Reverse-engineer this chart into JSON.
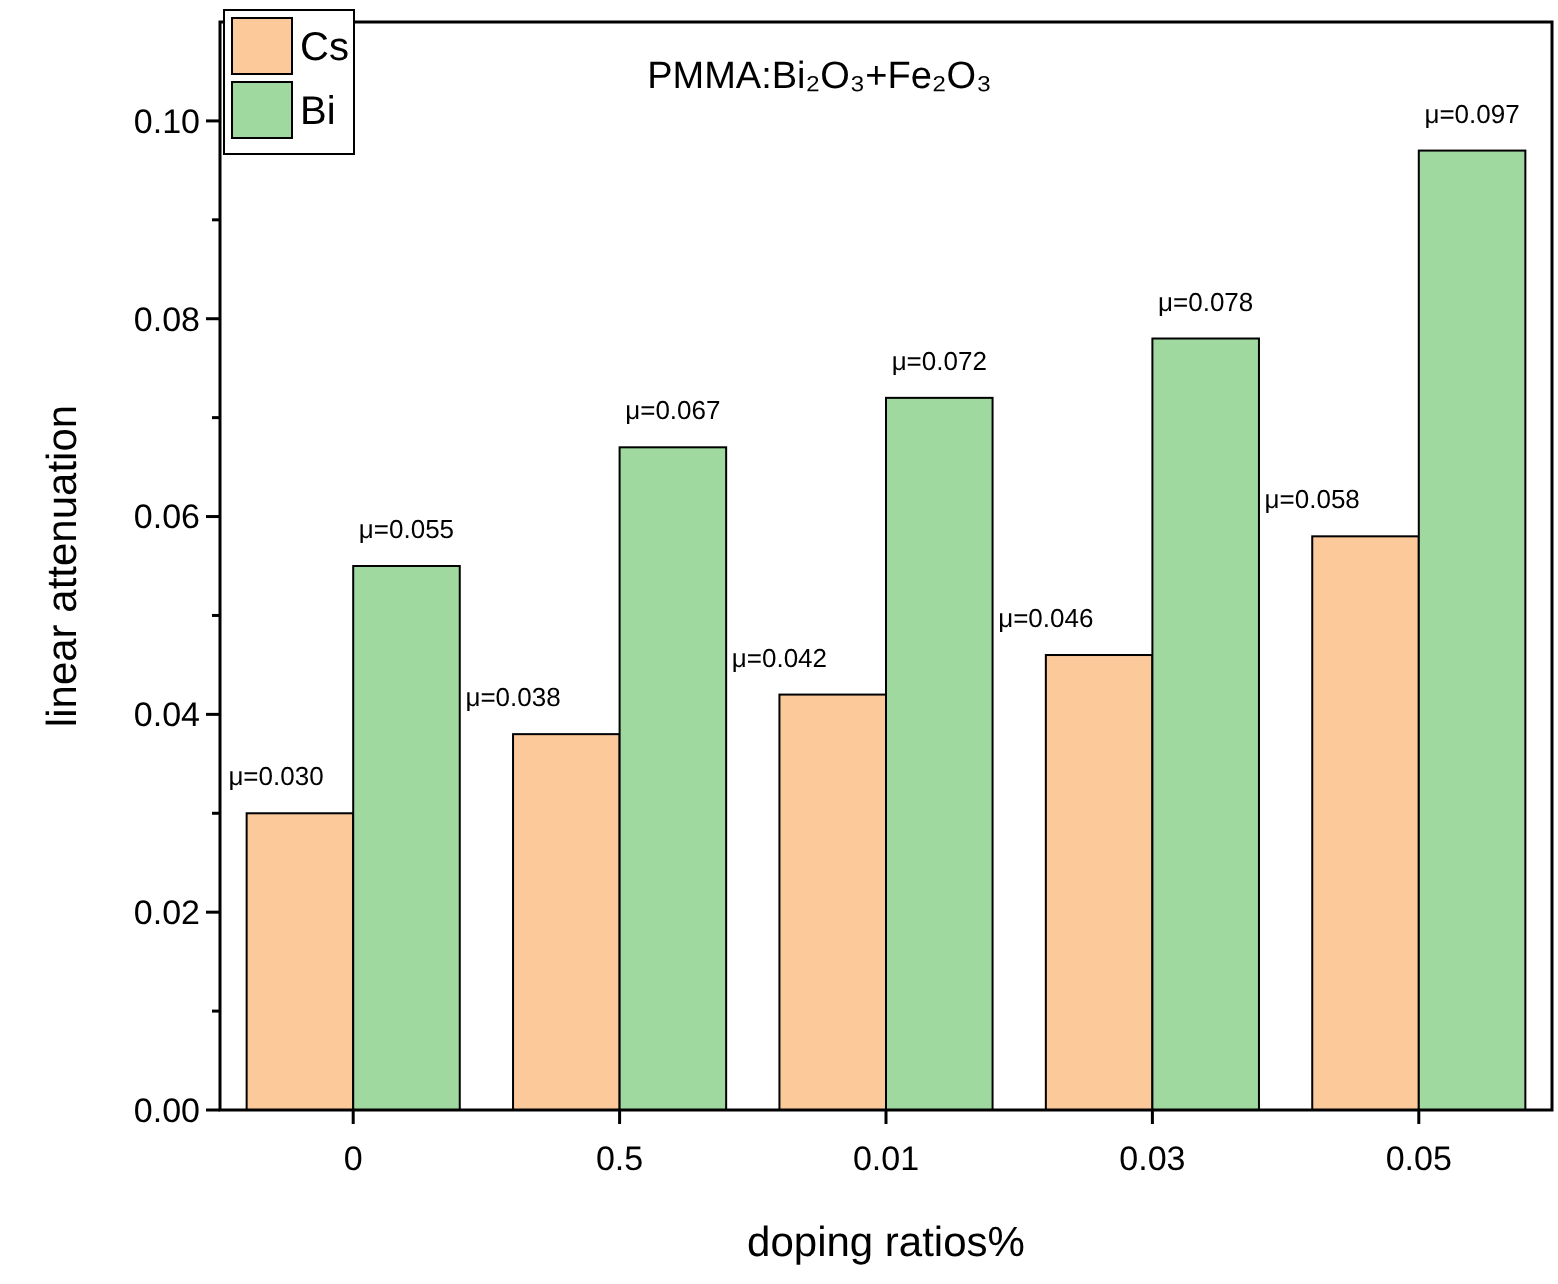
{
  "chart_data": {
    "type": "bar",
    "title": "PMMA:Bi₂O₃+Fe₂O₃",
    "xlabel": "doping ratios%",
    "ylabel": "linear attenuation",
    "categories": [
      "0",
      "0.5",
      "0.01",
      "0.03",
      "0.05"
    ],
    "series": [
      {
        "name": "Cs",
        "color": "#fbc99a",
        "values": [
          0.03,
          0.038,
          0.042,
          0.046,
          0.058
        ],
        "value_labels": [
          "μ=0.030",
          "μ=0.038",
          "μ=0.042",
          "μ=0.046",
          "μ=0.058"
        ]
      },
      {
        "name": "Bi",
        "color": "#a0d99f",
        "values": [
          0.055,
          0.067,
          0.072,
          0.078,
          0.097
        ],
        "value_labels": [
          "μ=0.055",
          "μ=0.067",
          "μ=0.072",
          "μ=0.078",
          "μ=0.097"
        ]
      }
    ],
    "ylim": [
      0,
      0.11
    ],
    "yticks": [
      {
        "value": 0,
        "label": "0.00"
      },
      {
        "value": 0.01,
        "label": null
      },
      {
        "value": 0.02,
        "label": "0.02"
      },
      {
        "value": 0.03,
        "label": null
      },
      {
        "value": 0.04,
        "label": "0.04"
      },
      {
        "value": 0.05,
        "label": null
      },
      {
        "value": 0.06,
        "label": "0.06"
      },
      {
        "value": 0.07,
        "label": null
      },
      {
        "value": 0.08,
        "label": "0.08"
      },
      {
        "value": 0.09,
        "label": null
      },
      {
        "value": 0.1,
        "label": "0.10"
      }
    ],
    "grid": false,
    "legend": "top left"
  }
}
